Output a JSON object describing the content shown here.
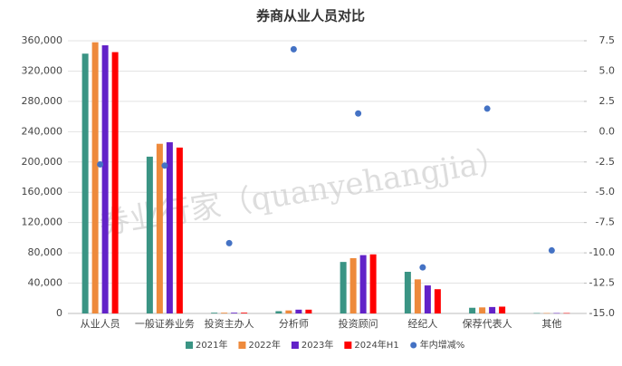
{
  "chart_data": {
    "type": "bar",
    "title": "券商从业人员对比",
    "watermark": "券业行家（quanyehangjia）",
    "categories": [
      "从业人员",
      "一般证券业务",
      "投资主办人",
      "分析师",
      "投资顾问",
      "经纪人",
      "保荐代表人",
      "其他"
    ],
    "series": [
      {
        "name": "2021年",
        "type": "bar",
        "color": "#3a9484",
        "values": [
          343000,
          207000,
          1000,
          3000,
          68000,
          55000,
          7500,
          500
        ]
      },
      {
        "name": "2022年",
        "type": "bar",
        "color": "#ee8a3c",
        "values": [
          358000,
          224000,
          1000,
          4000,
          73000,
          45000,
          8000,
          500
        ]
      },
      {
        "name": "2023年",
        "type": "bar",
        "color": "#6222c8",
        "values": [
          354000,
          226000,
          1000,
          5000,
          77000,
          37000,
          8500,
          500
        ]
      },
      {
        "name": "2024年H1",
        "type": "bar",
        "color": "#ff0000",
        "values": [
          345000,
          219000,
          1000,
          5000,
          78000,
          32000,
          9000,
          500
        ]
      },
      {
        "name": "年内增减%",
        "type": "scatter",
        "axis": "y2",
        "color": "#4472c4",
        "values": [
          -2.7,
          -2.8,
          -9.2,
          6.8,
          1.5,
          -11.2,
          1.9,
          -9.8
        ]
      }
    ],
    "ylim": [
      0,
      360000
    ],
    "yticks": [
      0,
      {
        "value": 40000,
        "label": "40,000"
      },
      {
        "value": 80000,
        "label": "80,000"
      },
      {
        "value": 120000,
        "label": "120,000"
      },
      {
        "value": 160000,
        "label": "160,000"
      },
      {
        "value": 200000,
        "label": "200,000"
      },
      {
        "value": 240000,
        "label": "240,000"
      },
      {
        "value": 280000,
        "label": "280,000"
      },
      {
        "value": 320000,
        "label": "320,000"
      },
      {
        "value": 360000,
        "label": "360,000"
      }
    ],
    "y2lim": [
      -15,
      7.5
    ],
    "y2ticks": [
      {
        "value": -15,
        "label": "-15.0"
      },
      -12.5,
      {
        "value": -10,
        "label": "-10.0"
      },
      -7.5,
      {
        "value": -5,
        "label": "-5.0"
      },
      -2.5,
      {
        "value": 0,
        "label": "0.0"
      },
      2.5,
      {
        "value": 5,
        "label": "5.0"
      },
      7.5
    ],
    "grid": true,
    "legend": "bottom"
  }
}
